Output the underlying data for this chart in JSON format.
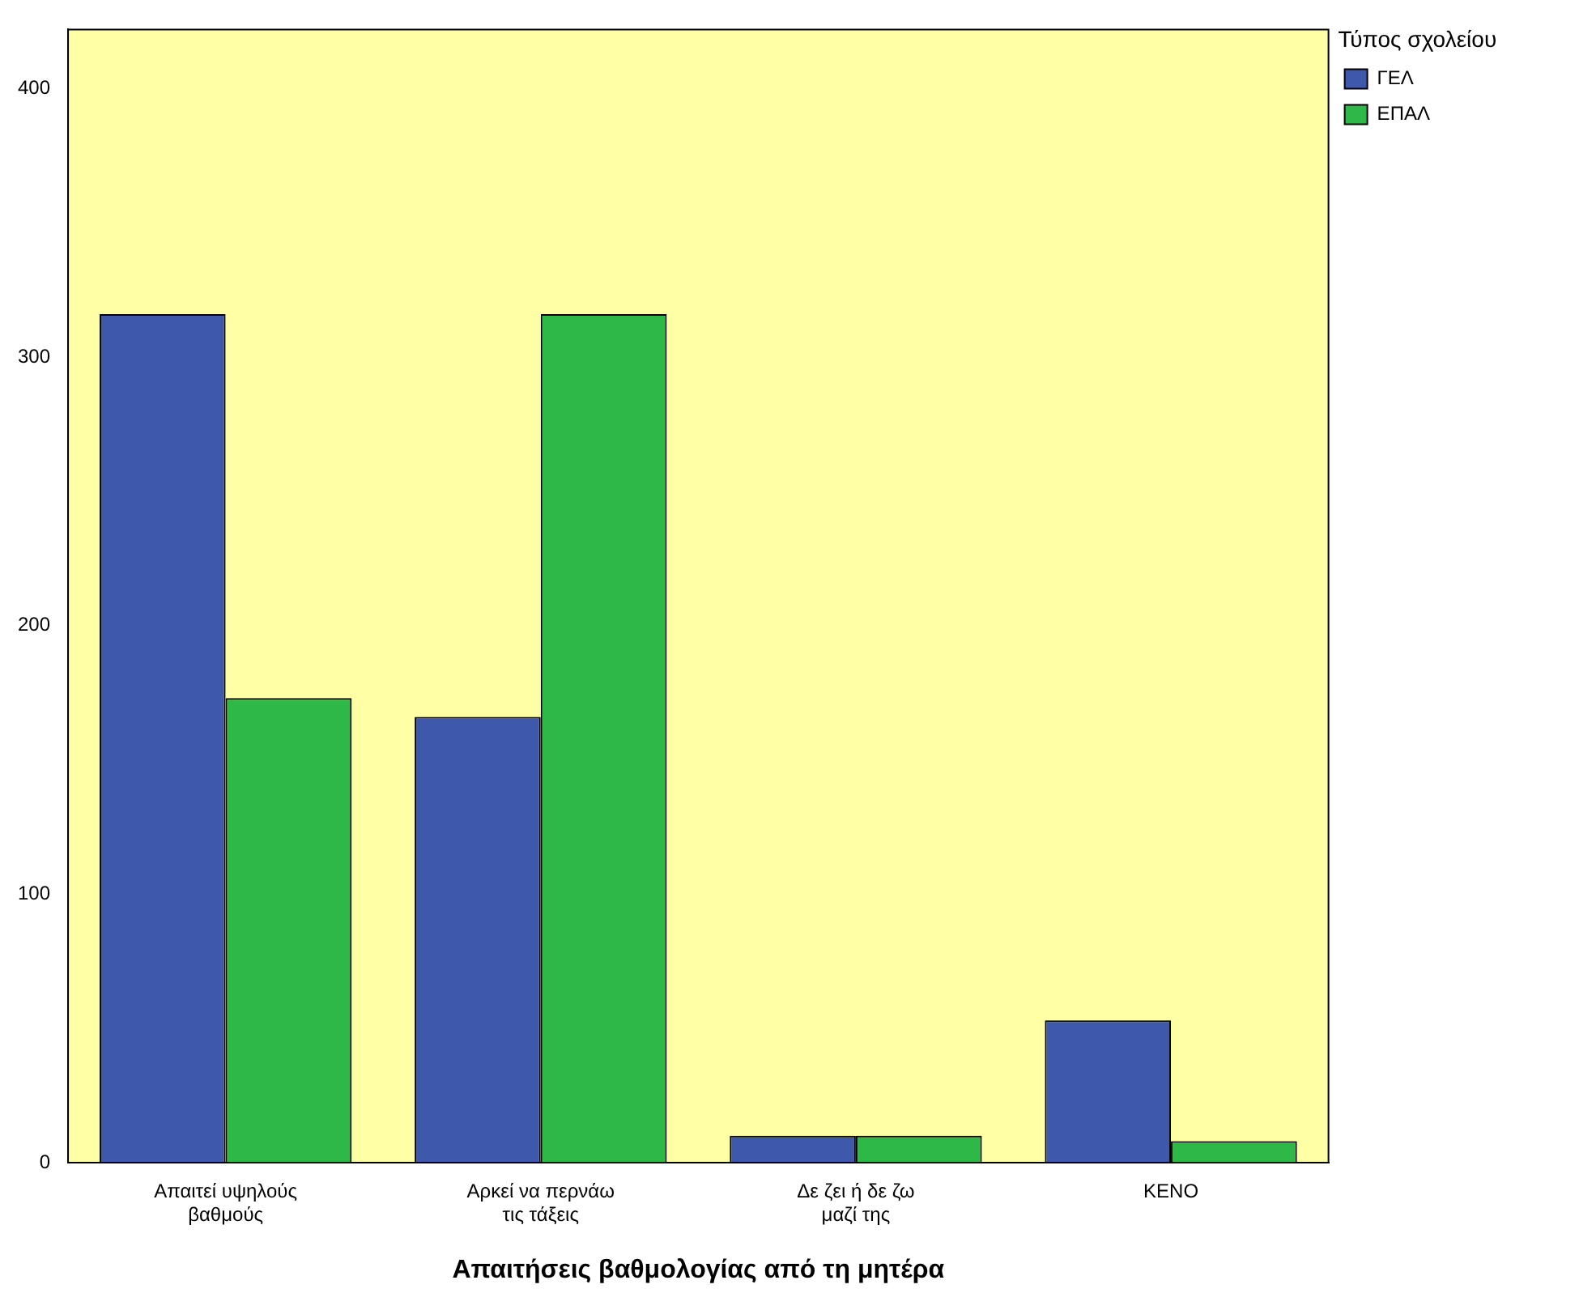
{
  "chart_data": {
    "type": "bar",
    "xlabel": "Απαιτήσεις βαθμολογίας από τη μητέρα",
    "legend_title": "Τύπος σχολείου",
    "categories": [
      "Απαιτεί υψηλούς βαθμούς",
      "Αρκεί να περνάω τις τάξεις",
      "Δε ζει ή δε ζω μαζί της",
      "ΚΕΝΟ"
    ],
    "series": [
      {
        "name": "ΓΕΛ",
        "color": "#3e58ac",
        "values": [
          316,
          166,
          10,
          53
        ]
      },
      {
        "name": "ΕΠΑΛ",
        "color": "#2eb848",
        "values": [
          173,
          316,
          10,
          8
        ]
      }
    ],
    "ylim": [
      0,
      422
    ],
    "yticks": [
      0,
      100,
      200,
      300,
      400
    ],
    "grid": false,
    "legend": "top right"
  }
}
